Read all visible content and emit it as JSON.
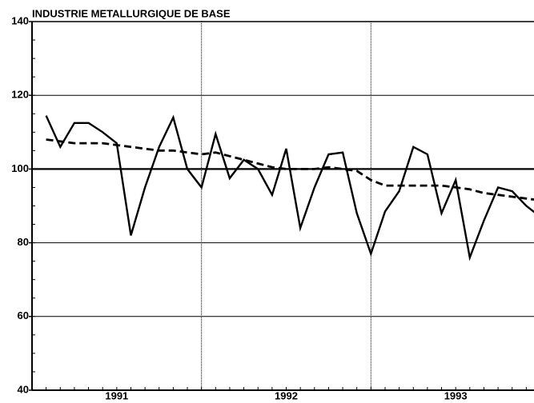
{
  "chart_data": {
    "type": "line",
    "title": "INDUSTRIE METALLURGIQUE DE BASE",
    "x": [
      1,
      2,
      3,
      4,
      5,
      6,
      7,
      8,
      9,
      10,
      11,
      12,
      13,
      14,
      15,
      16,
      17,
      18,
      19,
      20,
      21,
      22,
      23,
      24,
      25,
      26,
      27,
      28,
      29,
      30,
      31,
      32,
      33,
      34,
      35,
      36
    ],
    "series": [
      {
        "color": "#000000",
        "dash": false,
        "values": [
          114.5,
          106,
          112.5,
          112.5,
          110,
          107,
          82,
          95,
          106,
          114,
          100,
          95,
          109.5,
          97.5,
          102.5,
          100,
          93,
          105.5,
          84,
          95,
          104,
          104.5,
          88,
          77,
          88.5,
          94,
          106,
          104,
          88,
          97,
          76,
          86,
          95,
          94,
          90,
          87
        ]
      },
      {
        "color": "#000000",
        "dash": true,
        "values": [
          108,
          107.5,
          107,
          107,
          107,
          106.5,
          106,
          105.5,
          105,
          105,
          104.5,
          104,
          104.5,
          103.5,
          102.5,
          101.5,
          100.5,
          100,
          100,
          100,
          100.5,
          100,
          99.5,
          97,
          95.5,
          95.5,
          95.5,
          95.5,
          95.5,
          95,
          94.5,
          93.5,
          93,
          92.5,
          92,
          91.5
        ]
      }
    ],
    "xlim": [
      0,
      36
    ],
    "xticks": [
      {
        "value": 6,
        "label": "1991"
      },
      {
        "value": 18,
        "label": "1992"
      },
      {
        "value": 30,
        "label": "1993"
      }
    ],
    "xgrid": [
      12,
      24
    ],
    "ylim": [
      40,
      140
    ],
    "yticks": [
      40,
      60,
      80,
      100,
      120,
      140
    ],
    "grid": true,
    "reference_line": 100
  }
}
